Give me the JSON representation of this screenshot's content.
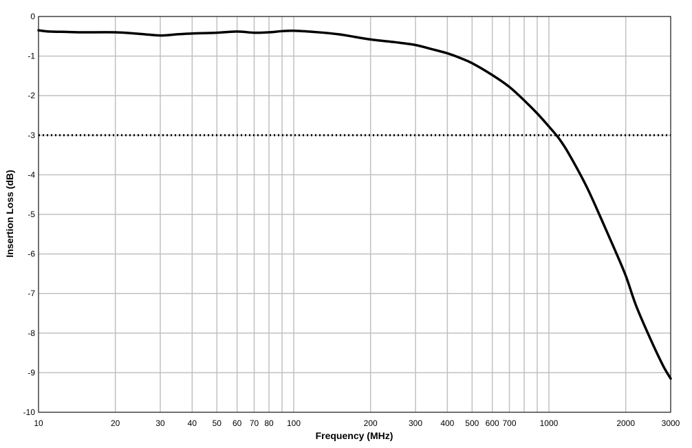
{
  "chart_data": {
    "type": "line",
    "title": "",
    "xlabel": "Frequency (MHz)",
    "ylabel": "Insertion Loss (dB)",
    "x_scale": "log",
    "xlim": [
      10,
      3000
    ],
    "ylim": [
      -10,
      0
    ],
    "grid": true,
    "x_gridlines": [
      10,
      20,
      30,
      40,
      50,
      60,
      70,
      80,
      90,
      100,
      200,
      300,
      400,
      500,
      600,
      700,
      800,
      900,
      1000,
      2000,
      3000
    ],
    "x_tick_labels": [
      {
        "value": 10,
        "label": "10"
      },
      {
        "value": 20,
        "label": "20"
      },
      {
        "value": 30,
        "label": "30"
      },
      {
        "value": 40,
        "label": "40"
      },
      {
        "value": 50,
        "label": "50"
      },
      {
        "value": 60,
        "label": "60"
      },
      {
        "value": 70,
        "label": "70"
      },
      {
        "value": 80,
        "label": "80"
      },
      {
        "value": 100,
        "label": "100"
      },
      {
        "value": 200,
        "label": "200"
      },
      {
        "value": 300,
        "label": "300"
      },
      {
        "value": 400,
        "label": "400"
      },
      {
        "value": 500,
        "label": "500"
      },
      {
        "value": 600,
        "label": "600"
      },
      {
        "value": 700,
        "label": "700"
      },
      {
        "value": 1000,
        "label": "1000"
      },
      {
        "value": 2000,
        "label": "2000"
      },
      {
        "value": 3000,
        "label": "3000"
      }
    ],
    "y_ticks": [
      {
        "value": 0,
        "label": "0"
      },
      {
        "value": -1,
        "label": "-1"
      },
      {
        "value": -2,
        "label": "-2"
      },
      {
        "value": -3,
        "label": "-3"
      },
      {
        "value": -4,
        "label": "-4"
      },
      {
        "value": -5,
        "label": "-5"
      },
      {
        "value": -6,
        "label": "-6"
      },
      {
        "value": -7,
        "label": "-7"
      },
      {
        "value": -8,
        "label": "-8"
      },
      {
        "value": -9,
        "label": "-9"
      },
      {
        "value": -10,
        "label": "-10"
      }
    ],
    "reference_line": {
      "y": -3,
      "style": "dotted"
    },
    "series": [
      {
        "color": "#000000",
        "x": [
          10,
          11,
          13,
          15,
          20,
          25,
          30,
          35,
          40,
          50,
          60,
          70,
          80,
          90,
          100,
          120,
          150,
          200,
          250,
          300,
          350,
          400,
          450,
          500,
          600,
          700,
          800,
          900,
          1000,
          1100,
          1200,
          1400,
          1600,
          1800,
          2000,
          2200,
          2500,
          2800,
          3000
        ],
        "y": [
          -0.35,
          -0.38,
          -0.39,
          -0.4,
          -0.4,
          -0.44,
          -0.48,
          -0.45,
          -0.43,
          -0.41,
          -0.38,
          -0.41,
          -0.4,
          -0.37,
          -0.36,
          -0.39,
          -0.45,
          -0.58,
          -0.65,
          -0.72,
          -0.83,
          -0.93,
          -1.05,
          -1.18,
          -1.48,
          -1.78,
          -2.12,
          -2.45,
          -2.78,
          -3.1,
          -3.48,
          -4.28,
          -5.1,
          -5.85,
          -6.55,
          -7.32,
          -8.15,
          -8.82,
          -9.15
        ]
      }
    ]
  }
}
